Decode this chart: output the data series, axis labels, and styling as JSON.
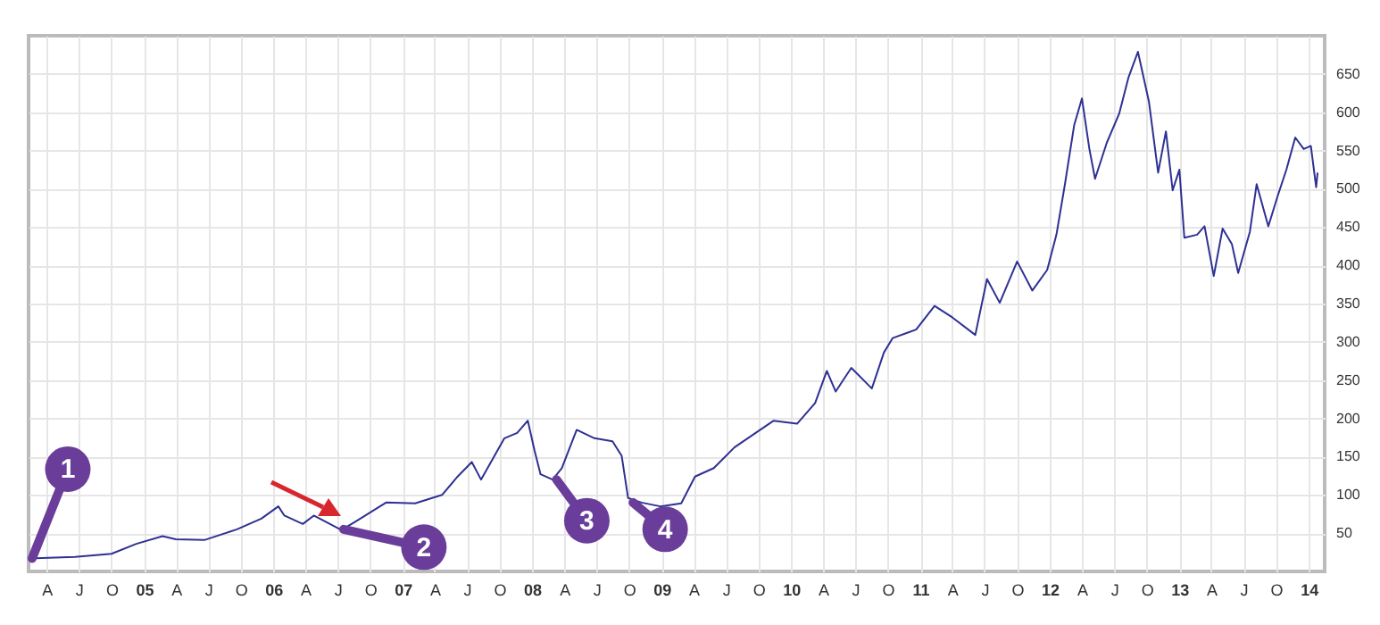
{
  "chart_data": {
    "type": "line",
    "x": [
      "2004-02-10",
      "2004-06-20",
      "2004-10-01",
      "2004-12-10",
      "2005-02-22",
      "2005-04-01",
      "2005-06-20",
      "2005-09-20",
      "2005-11-28",
      "2006-01-15",
      "2006-02-01",
      "2006-03-25",
      "2006-04-25",
      "2006-07-12",
      "2006-08-20",
      "2006-11-15",
      "2007-02-05",
      "2007-04-22",
      "2007-06-05",
      "2007-07-15",
      "2007-08-10",
      "2007-10-15",
      "2007-11-20",
      "2007-12-20",
      "2008-01-08",
      "2008-01-25",
      "2008-02-28",
      "2008-03-25",
      "2008-05-06",
      "2008-06-25",
      "2008-08-15",
      "2008-09-10",
      "2008-09-28",
      "2008-11-05",
      "2008-12-28",
      "2009-02-25",
      "2009-04-05",
      "2009-05-28",
      "2009-07-25",
      "2009-09-23",
      "2009-11-13",
      "2010-01-18",
      "2010-03-10",
      "2010-04-12",
      "2010-05-07",
      "2010-06-20",
      "2010-08-17",
      "2010-09-20",
      "2010-10-15",
      "2010-12-20",
      "2011-02-10",
      "2011-04-01",
      "2011-06-05",
      "2011-07-08",
      "2011-08-13",
      "2011-10-01",
      "2011-11-13",
      "2011-12-25",
      "2012-01-20",
      "2012-02-13",
      "2012-03-10",
      "2012-04-01",
      "2012-04-22",
      "2012-05-08",
      "2012-06-10",
      "2012-07-15",
      "2012-08-10",
      "2012-09-06",
      "2012-10-07",
      "2012-11-02",
      "2012-11-24",
      "2012-12-13",
      "2013-01-01",
      "2013-01-15",
      "2013-02-20",
      "2013-03-13",
      "2013-04-08",
      "2013-05-03",
      "2013-05-29",
      "2013-06-16",
      "2013-07-19",
      "2013-08-07",
      "2013-09-09",
      "2013-10-05",
      "2013-10-30",
      "2013-11-24",
      "2013-12-18",
      "2014-01-07",
      "2014-01-22",
      "2014-01-26"
    ],
    "series": [
      {
        "color": "#2e3192",
        "values": [
          17,
          19,
          23,
          36,
          46,
          42,
          41,
          55,
          69,
          85,
          73,
          62,
          73,
          54,
          65,
          90,
          89,
          100,
          124,
          143,
          120,
          174,
          181,
          197,
          158,
          127,
          120,
          135,
          185,
          174,
          170,
          151,
          96,
          90,
          85,
          89,
          124,
          135,
          162,
          181,
          197,
          193,
          220,
          262,
          235,
          266,
          239,
          286,
          305,
          316,
          347,
          332,
          309,
          382,
          351,
          405,
          367,
          394,
          440,
          506,
          583,
          618,
          552,
          513,
          560,
          598,
          645,
          679,
          614,
          521,
          575,
          498,
          525,
          436,
          440,
          451,
          386,
          448,
          428,
          390,
          444,
          506,
          451,
          490,
          525,
          567,
          552,
          556,
          502,
          521
        ]
      }
    ],
    "xlim": [
      "2004-02-10",
      "2014-02-15"
    ],
    "xticks": [
      {
        "value": "2004-04-01",
        "label": "A"
      },
      {
        "value": "2004-07-01",
        "label": "J"
      },
      {
        "value": "2004-10-01",
        "label": "O"
      },
      {
        "value": "2005-01-01",
        "label": "05"
      },
      {
        "value": "2005-04-01",
        "label": "A"
      },
      {
        "value": "2005-07-01",
        "label": "J"
      },
      {
        "value": "2005-10-01",
        "label": "O"
      },
      {
        "value": "2006-01-01",
        "label": "06"
      },
      {
        "value": "2006-04-01",
        "label": "A"
      },
      {
        "value": "2006-07-01",
        "label": "J"
      },
      {
        "value": "2006-10-01",
        "label": "O"
      },
      {
        "value": "2007-01-01",
        "label": "07"
      },
      {
        "value": "2007-04-01",
        "label": "A"
      },
      {
        "value": "2007-07-01",
        "label": "J"
      },
      {
        "value": "2007-10-01",
        "label": "O"
      },
      {
        "value": "2008-01-01",
        "label": "08"
      },
      {
        "value": "2008-04-01",
        "label": "A"
      },
      {
        "value": "2008-07-01",
        "label": "J"
      },
      {
        "value": "2008-10-01",
        "label": "O"
      },
      {
        "value": "2009-01-01",
        "label": "09"
      },
      {
        "value": "2009-04-01",
        "label": "A"
      },
      {
        "value": "2009-07-01",
        "label": "J"
      },
      {
        "value": "2009-10-01",
        "label": "O"
      },
      {
        "value": "2010-01-01",
        "label": "10"
      },
      {
        "value": "2010-04-01",
        "label": "A"
      },
      {
        "value": "2010-07-01",
        "label": "J"
      },
      {
        "value": "2010-10-01",
        "label": "O"
      },
      {
        "value": "2011-01-01",
        "label": "11"
      },
      {
        "value": "2011-04-01",
        "label": "A"
      },
      {
        "value": "2011-07-01",
        "label": "J"
      },
      {
        "value": "2011-10-01",
        "label": "O"
      },
      {
        "value": "2012-01-01",
        "label": "12"
      },
      {
        "value": "2012-04-01",
        "label": "A"
      },
      {
        "value": "2012-07-01",
        "label": "J"
      },
      {
        "value": "2012-10-01",
        "label": "O"
      },
      {
        "value": "2013-01-01",
        "label": "13"
      },
      {
        "value": "2013-04-01",
        "label": "A"
      },
      {
        "value": "2013-07-01",
        "label": "J"
      },
      {
        "value": "2013-10-01",
        "label": "O"
      },
      {
        "value": "2014-01-01",
        "label": "14"
      }
    ],
    "ylim": [
      0,
      700
    ],
    "yticks": [
      50,
      100,
      150,
      200,
      250,
      300,
      350,
      400,
      450,
      500,
      550,
      600,
      650
    ],
    "grid": true,
    "annotations": [
      {
        "text": "1",
        "x": "2004-02-20",
        "y": 17
      },
      {
        "text": "2",
        "x": "2006-07-18",
        "y": 55
      },
      {
        "text": "3",
        "x": "2008-03-10",
        "y": 120
      },
      {
        "text": "4",
        "x": "2008-10-12",
        "y": 90
      }
    ]
  }
}
